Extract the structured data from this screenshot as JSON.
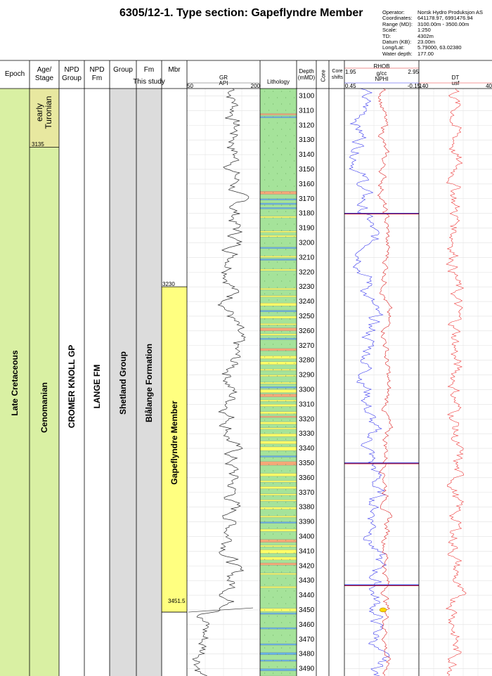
{
  "title": "6305/12-1. Type section: Gapeflyndre Member",
  "well_info": [
    {
      "key": "Operator:",
      "value": "Norsk Hydro Produksjon AS"
    },
    {
      "key": "Coordinates:",
      "value": "641178.97, 6991476.94"
    },
    {
      "key": "Range (MD):",
      "value": "3100.00m - 3500.00m"
    },
    {
      "key": "Scale:",
      "value": "1:250"
    },
    {
      "key": "TD:",
      "value": "4302m"
    },
    {
      "key": "Datum (KB):",
      "value": "23.00m"
    },
    {
      "key": "Long/Lat:",
      "value": "5.79000, 63.02380"
    },
    {
      "key": "Water depth:",
      "value": "177.00"
    }
  ],
  "headers": {
    "epoch": "Epoch",
    "age": "Age/\nStage",
    "npd_group": "NPD\nGroup",
    "npd_fm": "NPD\nFm",
    "group": "Group",
    "fm": "Fm",
    "mbr": "Mbr",
    "this_study": "This study",
    "gr": "GR",
    "gr_unit": "API",
    "gr_min": "50",
    "gr_max": "200",
    "lithology": "Lithology",
    "depth": "Depth\n(mMD)",
    "core": "Core",
    "core_shifts": "Core\nshifts",
    "rhob": "RHOB",
    "rhob_unit": "g/cc",
    "rhob_min": "1.95",
    "rhob_max": "2.95",
    "nphi": "NPHI",
    "nphi_min": "0.45",
    "nphi_max": "-0.15",
    "dt": "DT",
    "dt_unit": "usf",
    "dt_min": "140",
    "dt_max": "40"
  },
  "columns": {
    "epoch": "Late Cretaceous",
    "age_upper": "early\nTuronian",
    "age_lower": "Cenomanian",
    "age_boundary": "3135",
    "npd_group": "CROMER KNOLL GP",
    "npd_fm": "LANGE FM",
    "group": "Shetland Group",
    "fm": "Blålange Formation",
    "mbr": "Gapeflyndre Member",
    "mbr_top": "3230",
    "mbr_base": "3451.5"
  },
  "depths": [
    "3100",
    "3110",
    "3120",
    "3130",
    "3140",
    "3150",
    "3160",
    "3170",
    "3180",
    "3190",
    "3200",
    "3210",
    "3220",
    "3230",
    "3240",
    "3250",
    "3260",
    "3270",
    "3280",
    "3290",
    "3300",
    "3310",
    "3320",
    "3330",
    "3340",
    "3350",
    "3360",
    "3370",
    "3380",
    "3390",
    "3400",
    "3410",
    "3420",
    "3430",
    "3440",
    "3450",
    "3460",
    "3470",
    "3480",
    "3490"
  ],
  "colors": {
    "epoch": "#d9f0a3",
    "age": "#d9f0a3",
    "age_upper": "#e8e8a0",
    "grey": "#dcdcdc",
    "mbr": "#ffff80",
    "litho_base": "#a5e39a",
    "litho_sand": "#ffff66",
    "litho_orange": "#f5a878",
    "litho_blue": "#66b3e6",
    "horizon_red": "#cc0000",
    "horizon_blue": "#3333cc"
  }
}
